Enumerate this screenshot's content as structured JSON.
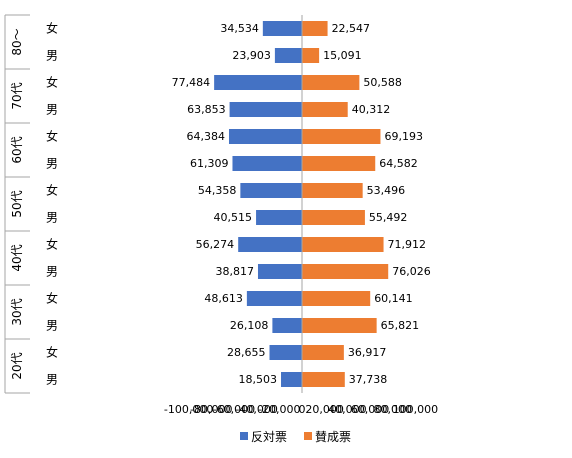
{
  "chart_data": {
    "type": "bar",
    "orientation": "horizontal",
    "x_ticks": [
      "-100,000",
      "-80,000",
      "-60,000",
      "-40,000",
      "-20,000",
      "0",
      "20,000",
      "40,000",
      "60,000",
      "80,000",
      "100,000"
    ],
    "xlim": [
      -100000,
      100000
    ],
    "legend_position": "bottom",
    "colors": {
      "against": "#4472c4",
      "for": "#ed7d31",
      "axis": "#a6a6a6"
    },
    "series": [
      {
        "name": "反対票"
      },
      {
        "name": "賛成票"
      }
    ],
    "groups": [
      {
        "label": "80～",
        "rows": [
          {
            "sex": "女",
            "against": -34534,
            "for": 22547,
            "against_label": "34,534",
            "for_label": "22,547"
          },
          {
            "sex": "男",
            "against": -23903,
            "for": 15091,
            "against_label": "23,903",
            "for_label": "15,091"
          }
        ]
      },
      {
        "label": "70代",
        "rows": [
          {
            "sex": "女",
            "against": -77484,
            "for": 50588,
            "against_label": "77,484",
            "for_label": "50,588"
          },
          {
            "sex": "男",
            "against": -63853,
            "for": 40312,
            "against_label": "63,853",
            "for_label": "40,312"
          }
        ]
      },
      {
        "label": "60代",
        "rows": [
          {
            "sex": "女",
            "against": -64384,
            "for": 69193,
            "against_label": "64,384",
            "for_label": "69,193"
          },
          {
            "sex": "男",
            "against": -61309,
            "for": 64582,
            "against_label": "61,309",
            "for_label": "64,582"
          }
        ]
      },
      {
        "label": "50代",
        "rows": [
          {
            "sex": "女",
            "against": -54358,
            "for": 53496,
            "against_label": "54,358",
            "for_label": "53,496"
          },
          {
            "sex": "男",
            "against": -40515,
            "for": 55492,
            "against_label": "40,515",
            "for_label": "55,492"
          }
        ]
      },
      {
        "label": "40代",
        "rows": [
          {
            "sex": "女",
            "against": -56274,
            "for": 71912,
            "against_label": "56,274",
            "for_label": "71,912"
          },
          {
            "sex": "男",
            "against": -38817,
            "for": 76026,
            "against_label": "38,817",
            "for_label": "76,026"
          }
        ]
      },
      {
        "label": "30代",
        "rows": [
          {
            "sex": "女",
            "against": -48613,
            "for": 60141,
            "against_label": "48,613",
            "for_label": "60,141"
          },
          {
            "sex": "男",
            "against": -26108,
            "for": 65821,
            "against_label": "26,108",
            "for_label": "65,821"
          }
        ]
      },
      {
        "label": "20代",
        "rows": [
          {
            "sex": "女",
            "against": -28655,
            "for": 36917,
            "against_label": "28,655",
            "for_label": "36,917"
          },
          {
            "sex": "男",
            "against": -18503,
            "for": 37738,
            "against_label": "18,503",
            "for_label": "37,738"
          }
        ]
      }
    ]
  }
}
